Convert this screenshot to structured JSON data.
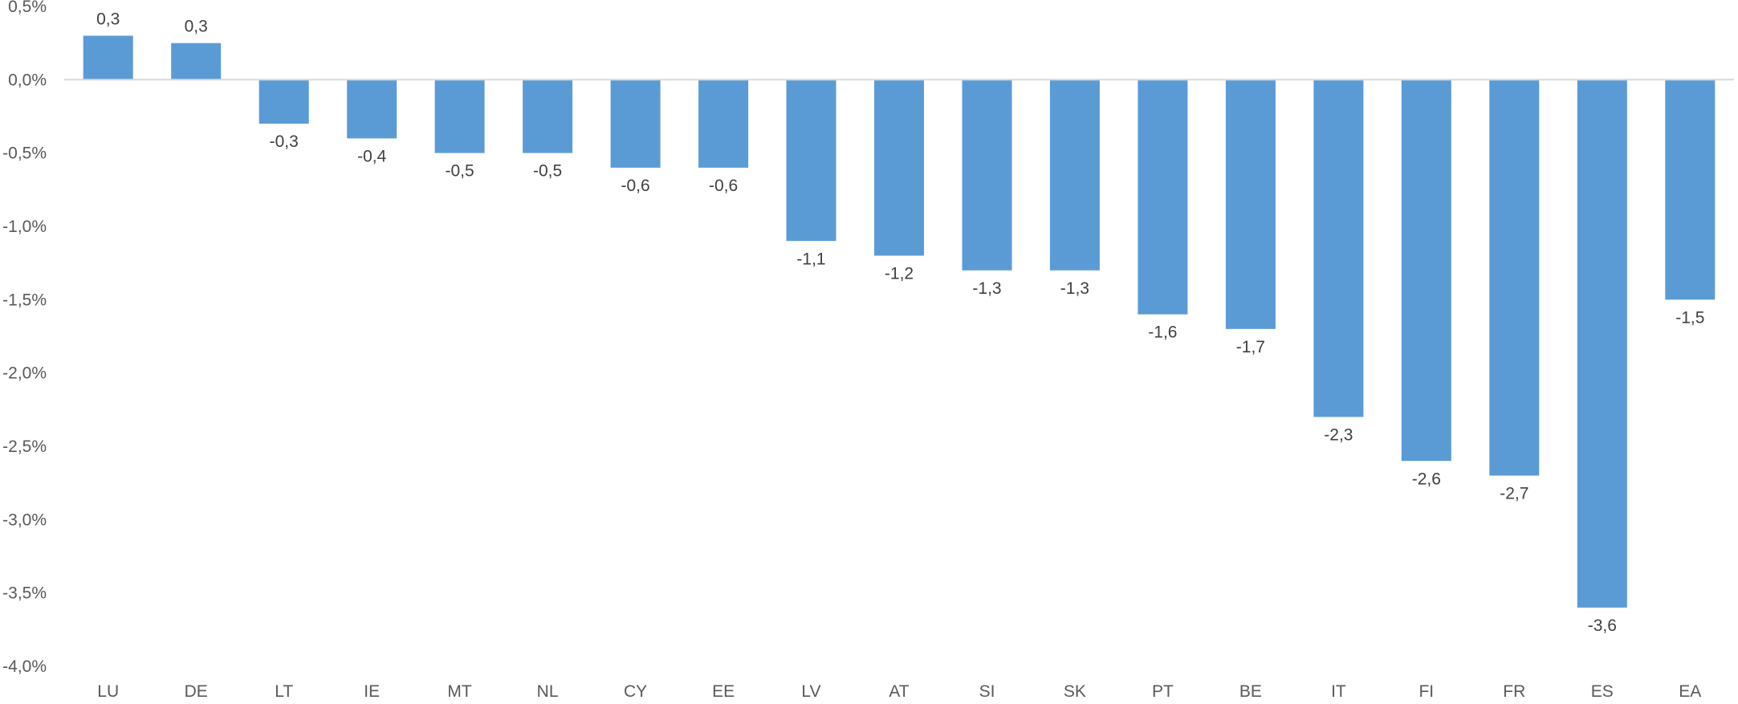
{
  "chart_data": {
    "type": "bar",
    "categories": [
      "LU",
      "DE",
      "LT",
      "IE",
      "MT",
      "NL",
      "CY",
      "EE",
      "LV",
      "AT",
      "SI",
      "SK",
      "PT",
      "BE",
      "IT",
      "FI",
      "FR",
      "ES",
      "EA"
    ],
    "values": [
      0.3,
      0.25,
      -0.3,
      -0.4,
      -0.5,
      -0.5,
      -0.6,
      -0.6,
      -1.1,
      -1.2,
      -1.3,
      -1.3,
      -1.6,
      -1.7,
      -2.3,
      -2.6,
      -2.7,
      -3.6,
      -1.5
    ],
    "data_labels": [
      "0,3",
      "0,3",
      "-0,3",
      "-0,4",
      "-0,5",
      "-0,5",
      "-0,6",
      "-0,6",
      "-1,1",
      "-1,2",
      "-1,3",
      "-1,3",
      "-1,6",
      "-1,7",
      "-2,3",
      "-2,6",
      "-2,7",
      "-3,6",
      "-1,5"
    ],
    "y_ticks": [
      0.5,
      0.0,
      -0.5,
      -1.0,
      -1.5,
      -2.0,
      -2.5,
      -3.0,
      -3.5,
      -4.0
    ],
    "y_tick_labels": [
      "0,5%",
      "0,0%",
      "-0,5%",
      "-1,0%",
      "-1,5%",
      "-2,0%",
      "-2,5%",
      "-3,0%",
      "-3,5%",
      "-4,0%"
    ],
    "ylim": [
      -4.0,
      0.5
    ],
    "title": "",
    "xlabel": "",
    "ylabel": "",
    "grid": false,
    "legend": "none",
    "bar_color": "#5B9BD5",
    "axis_color": "#D9D9D9"
  }
}
